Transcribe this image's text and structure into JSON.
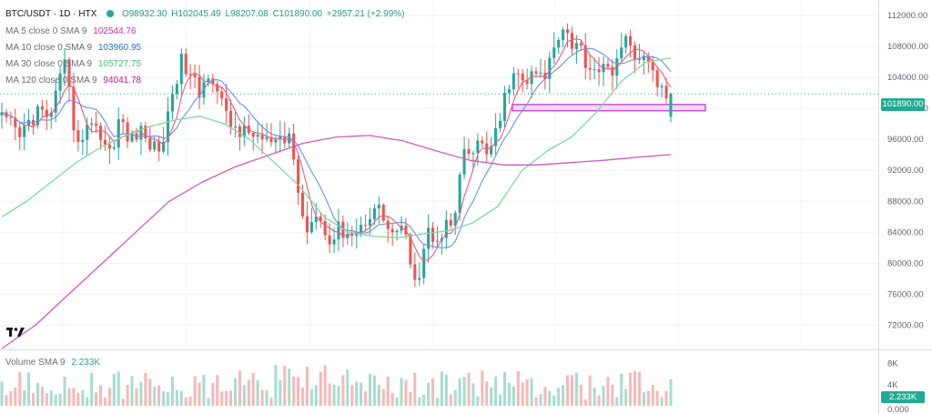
{
  "header": {
    "symbol": "BTC/USDT · 1D · HTX",
    "ohlc": {
      "open": "O98932.30",
      "high": "H102045.49",
      "low": "L98207.08",
      "close": "C101890.00",
      "change": "+2957.21 (+2.99%)"
    }
  },
  "indicators": [
    {
      "label": "MA 5 close 0 SMA 9",
      "value": "102544.76",
      "color": "#d62ea3"
    },
    {
      "label": "MA 10 close 0 SMA 9",
      "value": "103960.95",
      "color": "#2f6fd6"
    },
    {
      "label": "MA 30 close 0 SMA 9",
      "value": "105727.75",
      "color": "#3fbf6f"
    },
    {
      "label": "MA 120 close 0 SMA 9",
      "value": "94041.78",
      "color": "#c2188f"
    }
  ],
  "price_badge": "101890.00",
  "volume": {
    "label": "Volume SMA 9",
    "value": "2.233K",
    "badge": "2.233K"
  },
  "colors": {
    "up": "#26a69a",
    "down": "#ef5350",
    "ma5": "#ef5a79",
    "ma10": "#6a8ff0",
    "ma30": "#7fd89a",
    "ma120": "#d15bbf",
    "zone_border": "#c94fd6",
    "zone_fill": "#f1dbf5"
  },
  "icons": {
    "logo": "tradingview-logo",
    "dot": "market-status-dot"
  },
  "chart_data": {
    "type": "candlestick",
    "price_axis": {
      "ticks": [
        "112000.00",
        "108000.00",
        "104000.00",
        "100000.00",
        "96000.00",
        "92000.00",
        "88000.00",
        "84000.00",
        "80000.00",
        "76000.00",
        "72000.00"
      ],
      "ylim": [
        69000,
        114000
      ]
    },
    "volume_axis": {
      "ticks": [
        "8K",
        "4K"
      ],
      "bottom_label": "0.000",
      "ylim": [
        0,
        10
      ]
    },
    "close_anchors": [
      98500,
      97600,
      96100,
      98300,
      99800,
      98300,
      101800,
      105200,
      97600,
      95400,
      99200,
      96200,
      94200,
      98900,
      95600,
      97100,
      96100,
      94600,
      96300,
      103300,
      106200,
      103600,
      101600,
      105600,
      101800,
      98100,
      97600,
      96400,
      96900,
      95600,
      95400,
      95100,
      96800,
      86500,
      84300,
      88200,
      82300,
      84100,
      84500,
      83600,
      85200,
      87300,
      86700,
      83800,
      84500,
      81900,
      77400,
      84000,
      83600,
      84700,
      85000,
      93600,
      94100,
      95500,
      94300,
      97500,
      103400,
      104000,
      103300,
      104500,
      103500,
      108000,
      111200,
      108600,
      107700,
      105300,
      105500,
      104300,
      106500,
      108300,
      107400,
      106200,
      104700,
      102100,
      101890
    ],
    "ma_overlay_anchors": {
      "ma30": [
        86000,
        88000,
        90500,
        93000,
        95000,
        96500,
        97700,
        98500,
        99000,
        98000,
        96000,
        93000,
        90000,
        86000,
        84000,
        83500,
        83300,
        83800,
        84200,
        85200,
        87300,
        92000,
        94500,
        96300,
        99500,
        103500,
        106000,
        106500
      ],
      "ma120": [
        69000,
        72000,
        76000,
        80000,
        84000,
        88000,
        90500,
        92500,
        94000,
        95500,
        96300,
        96500,
        95800,
        94500,
        93300,
        92700,
        92700,
        93000,
        93300,
        93700,
        94041.78
      ]
    },
    "highlight_zone": {
      "price_low": 99700,
      "price_high": 100500,
      "type": "horizontal-support-box"
    }
  }
}
